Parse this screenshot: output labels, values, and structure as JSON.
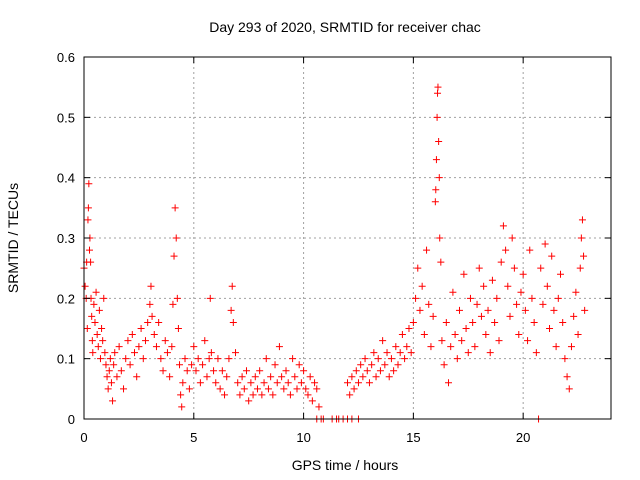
{
  "chart_data": {
    "type": "scatter",
    "title": "Day 293 of 2020, SRMTID for receiver chac",
    "xlabel": "GPS time / hours",
    "ylabel": "SRMTID / TECUs",
    "xlim": [
      0,
      24
    ],
    "ylim": [
      0,
      0.6
    ],
    "xticks": [
      0,
      5,
      10,
      15,
      20
    ],
    "xtick_labels": [
      "0",
      "5",
      "10",
      "15",
      "20"
    ],
    "yticks": [
      0,
      0.1,
      0.2,
      0.3,
      0.4,
      0.5,
      0.6
    ],
    "ytick_labels": [
      "0",
      "0.1",
      "0.2",
      "0.3",
      "0.4",
      "0.5",
      "0.6"
    ],
    "grid": true,
    "marker": "plus",
    "color": "#ff0000",
    "series": [
      {
        "name": "SRMTID",
        "points": [
          [
            0.0,
            0.25
          ],
          [
            0.05,
            0.22
          ],
          [
            0.1,
            0.2
          ],
          [
            0.12,
            0.26
          ],
          [
            0.15,
            0.15
          ],
          [
            0.18,
            0.33
          ],
          [
            0.2,
            0.35
          ],
          [
            0.22,
            0.39
          ],
          [
            0.25,
            0.28
          ],
          [
            0.27,
            0.3
          ],
          [
            0.3,
            0.26
          ],
          [
            0.32,
            0.2
          ],
          [
            0.35,
            0.17
          ],
          [
            0.38,
            0.13
          ],
          [
            0.4,
            0.11
          ],
          [
            0.45,
            0.19
          ],
          [
            0.5,
            0.16
          ],
          [
            0.55,
            0.21
          ],
          [
            0.6,
            0.14
          ],
          [
            0.65,
            0.12
          ],
          [
            0.7,
            0.18
          ],
          [
            0.75,
            0.1
          ],
          [
            0.8,
            0.15
          ],
          [
            0.85,
            0.13
          ],
          [
            0.9,
            0.2
          ],
          [
            0.95,
            0.11
          ],
          [
            1.0,
            0.09
          ],
          [
            1.05,
            0.07
          ],
          [
            1.1,
            0.05
          ],
          [
            1.15,
            0.08
          ],
          [
            1.2,
            0.1
          ],
          [
            1.25,
            0.06
          ],
          [
            1.3,
            0.03
          ],
          [
            1.35,
            0.09
          ],
          [
            1.4,
            0.11
          ],
          [
            1.5,
            0.07
          ],
          [
            1.6,
            0.12
          ],
          [
            1.7,
            0.08
          ],
          [
            1.8,
            0.05
          ],
          [
            1.9,
            0.1
          ],
          [
            2.0,
            0.13
          ],
          [
            2.1,
            0.09
          ],
          [
            2.2,
            0.14
          ],
          [
            2.3,
            0.11
          ],
          [
            2.4,
            0.07
          ],
          [
            2.5,
            0.12
          ],
          [
            2.6,
            0.15
          ],
          [
            2.7,
            0.1
          ],
          [
            2.8,
            0.13
          ],
          [
            2.9,
            0.16
          ],
          [
            3.0,
            0.19
          ],
          [
            3.05,
            0.22
          ],
          [
            3.1,
            0.17
          ],
          [
            3.2,
            0.14
          ],
          [
            3.3,
            0.12
          ],
          [
            3.4,
            0.16
          ],
          [
            3.5,
            0.1
          ],
          [
            3.6,
            0.08
          ],
          [
            3.7,
            0.13
          ],
          [
            3.8,
            0.11
          ],
          [
            3.9,
            0.07
          ],
          [
            4.0,
            0.12
          ],
          [
            4.05,
            0.19
          ],
          [
            4.1,
            0.27
          ],
          [
            4.15,
            0.35
          ],
          [
            4.2,
            0.3
          ],
          [
            4.25,
            0.2
          ],
          [
            4.3,
            0.15
          ],
          [
            4.35,
            0.09
          ],
          [
            4.4,
            0.04
          ],
          [
            4.45,
            0.02
          ],
          [
            4.5,
            0.06
          ],
          [
            4.6,
            0.1
          ],
          [
            4.7,
            0.08
          ],
          [
            4.8,
            0.05
          ],
          [
            4.9,
            0.09
          ],
          [
            5.0,
            0.12
          ],
          [
            5.1,
            0.08
          ],
          [
            5.2,
            0.1
          ],
          [
            5.3,
            0.06
          ],
          [
            5.4,
            0.09
          ],
          [
            5.5,
            0.13
          ],
          [
            5.6,
            0.07
          ],
          [
            5.7,
            0.1
          ],
          [
            5.75,
            0.2
          ],
          [
            5.8,
            0.11
          ],
          [
            5.9,
            0.08
          ],
          [
            6.0,
            0.06
          ],
          [
            6.1,
            0.1
          ],
          [
            6.2,
            0.05
          ],
          [
            6.3,
            0.08
          ],
          [
            6.4,
            0.04
          ],
          [
            6.5,
            0.07
          ],
          [
            6.6,
            0.1
          ],
          [
            6.7,
            0.18
          ],
          [
            6.75,
            0.22
          ],
          [
            6.8,
            0.16
          ],
          [
            6.9,
            0.11
          ],
          [
            7.0,
            0.06
          ],
          [
            7.1,
            0.04
          ],
          [
            7.2,
            0.07
          ],
          [
            7.3,
            0.05
          ],
          [
            7.4,
            0.08
          ],
          [
            7.5,
            0.03
          ],
          [
            7.6,
            0.06
          ],
          [
            7.7,
            0.04
          ],
          [
            7.8,
            0.07
          ],
          [
            7.9,
            0.05
          ],
          [
            8.0,
            0.08
          ],
          [
            8.1,
            0.04
          ],
          [
            8.2,
            0.06
          ],
          [
            8.3,
            0.1
          ],
          [
            8.4,
            0.05
          ],
          [
            8.5,
            0.07
          ],
          [
            8.6,
            0.04
          ],
          [
            8.7,
            0.09
          ],
          [
            8.8,
            0.06
          ],
          [
            8.9,
            0.12
          ],
          [
            9.0,
            0.07
          ],
          [
            9.1,
            0.05
          ],
          [
            9.2,
            0.08
          ],
          [
            9.3,
            0.06
          ],
          [
            9.4,
            0.04
          ],
          [
            9.5,
            0.1
          ],
          [
            9.6,
            0.07
          ],
          [
            9.7,
            0.05
          ],
          [
            9.8,
            0.09
          ],
          [
            9.9,
            0.06
          ],
          [
            10.0,
            0.08
          ],
          [
            10.1,
            0.05
          ],
          [
            10.2,
            0.04
          ],
          [
            10.3,
            0.07
          ],
          [
            10.4,
            0.03
          ],
          [
            10.5,
            0.06
          ],
          [
            10.6,
            0.05
          ],
          [
            10.7,
            0.02
          ],
          [
            10.6,
            0.0
          ],
          [
            10.8,
            0.0
          ],
          [
            10.9,
            0.0
          ],
          [
            11.3,
            0.0
          ],
          [
            11.5,
            0.0
          ],
          [
            11.6,
            0.0
          ],
          [
            11.8,
            0.0
          ],
          [
            12.0,
            0.0
          ],
          [
            12.2,
            0.0
          ],
          [
            12.5,
            0.0
          ],
          [
            12.0,
            0.06
          ],
          [
            12.1,
            0.04
          ],
          [
            12.2,
            0.07
          ],
          [
            12.3,
            0.05
          ],
          [
            12.4,
            0.08
          ],
          [
            12.5,
            0.06
          ],
          [
            12.6,
            0.09
          ],
          [
            12.7,
            0.07
          ],
          [
            12.8,
            0.1
          ],
          [
            12.9,
            0.08
          ],
          [
            13.0,
            0.06
          ],
          [
            13.1,
            0.09
          ],
          [
            13.2,
            0.11
          ],
          [
            13.3,
            0.07
          ],
          [
            13.4,
            0.1
          ],
          [
            13.5,
            0.08
          ],
          [
            13.6,
            0.13
          ],
          [
            13.7,
            0.09
          ],
          [
            13.8,
            0.11
          ],
          [
            13.9,
            0.07
          ],
          [
            14.0,
            0.1
          ],
          [
            14.1,
            0.08
          ],
          [
            14.2,
            0.12
          ],
          [
            14.3,
            0.09
          ],
          [
            14.4,
            0.11
          ],
          [
            14.5,
            0.14
          ],
          [
            14.6,
            0.1
          ],
          [
            14.7,
            0.12
          ],
          [
            14.8,
            0.15
          ],
          [
            14.9,
            0.11
          ],
          [
            15.0,
            0.16
          ],
          [
            15.1,
            0.2
          ],
          [
            15.2,
            0.25
          ],
          [
            15.3,
            0.18
          ],
          [
            15.4,
            0.22
          ],
          [
            15.5,
            0.14
          ],
          [
            15.6,
            0.28
          ],
          [
            15.7,
            0.19
          ],
          [
            15.8,
            0.12
          ],
          [
            15.9,
            0.17
          ],
          [
            16.0,
            0.36
          ],
          [
            16.02,
            0.38
          ],
          [
            16.05,
            0.43
          ],
          [
            16.08,
            0.5
          ],
          [
            16.1,
            0.54
          ],
          [
            16.12,
            0.55
          ],
          [
            16.15,
            0.46
          ],
          [
            16.18,
            0.4
          ],
          [
            16.2,
            0.3
          ],
          [
            16.25,
            0.26
          ],
          [
            16.3,
            0.13
          ],
          [
            16.4,
            0.09
          ],
          [
            16.5,
            0.16
          ],
          [
            16.6,
            0.06
          ],
          [
            16.7,
            0.12
          ],
          [
            16.8,
            0.21
          ],
          [
            16.9,
            0.14
          ],
          [
            17.0,
            0.1
          ],
          [
            17.1,
            0.18
          ],
          [
            17.2,
            0.13
          ],
          [
            17.3,
            0.24
          ],
          [
            17.4,
            0.15
          ],
          [
            17.5,
            0.11
          ],
          [
            17.6,
            0.2
          ],
          [
            17.7,
            0.16
          ],
          [
            17.8,
            0.12
          ],
          [
            17.9,
            0.19
          ],
          [
            18.0,
            0.25
          ],
          [
            18.1,
            0.17
          ],
          [
            18.2,
            0.22
          ],
          [
            18.3,
            0.14
          ],
          [
            18.4,
            0.18
          ],
          [
            18.5,
            0.11
          ],
          [
            18.6,
            0.23
          ],
          [
            18.7,
            0.16
          ],
          [
            18.8,
            0.2
          ],
          [
            18.9,
            0.13
          ],
          [
            19.0,
            0.26
          ],
          [
            19.1,
            0.32
          ],
          [
            19.2,
            0.28
          ],
          [
            19.3,
            0.22
          ],
          [
            19.4,
            0.17
          ],
          [
            19.5,
            0.3
          ],
          [
            19.6,
            0.25
          ],
          [
            19.7,
            0.19
          ],
          [
            19.8,
            0.14
          ],
          [
            19.9,
            0.21
          ],
          [
            20.0,
            0.24
          ],
          [
            20.1,
            0.18
          ],
          [
            20.2,
            0.13
          ],
          [
            20.3,
            0.28
          ],
          [
            20.4,
            0.2
          ],
          [
            20.5,
            0.16
          ],
          [
            20.6,
            0.11
          ],
          [
            20.7,
            0.0
          ],
          [
            20.8,
            0.25
          ],
          [
            20.9,
            0.19
          ],
          [
            21.0,
            0.29
          ],
          [
            21.1,
            0.22
          ],
          [
            21.2,
            0.15
          ],
          [
            21.3,
            0.27
          ],
          [
            21.4,
            0.18
          ],
          [
            21.5,
            0.12
          ],
          [
            21.6,
            0.2
          ],
          [
            21.7,
            0.24
          ],
          [
            21.8,
            0.16
          ],
          [
            21.9,
            0.1
          ],
          [
            22.0,
            0.07
          ],
          [
            22.1,
            0.05
          ],
          [
            22.2,
            0.12
          ],
          [
            22.3,
            0.17
          ],
          [
            22.4,
            0.21
          ],
          [
            22.5,
            0.14
          ],
          [
            22.6,
            0.25
          ],
          [
            22.65,
            0.3
          ],
          [
            22.7,
            0.33
          ],
          [
            22.75,
            0.27
          ],
          [
            22.8,
            0.18
          ]
        ]
      }
    ]
  }
}
